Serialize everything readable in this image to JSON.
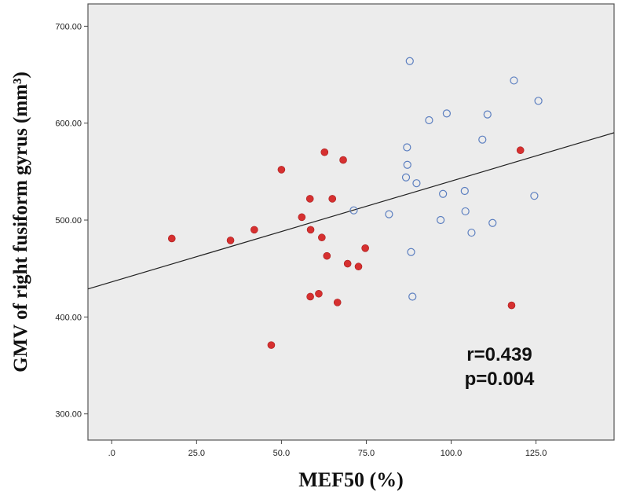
{
  "chart_data": {
    "type": "scatter",
    "xlabel": "MEF50 (%)",
    "ylabel": "GMV of right fusiform gyrus (mm³)",
    "xlim": [
      -7,
      148
    ],
    "ylim": [
      273,
      723
    ],
    "x_ticks": [
      {
        "value": 0,
        "label": ".0"
      },
      {
        "value": 25,
        "label": "25.0"
      },
      {
        "value": 50,
        "label": "50.0"
      },
      {
        "value": 75,
        "label": "75.0"
      },
      {
        "value": 100,
        "label": "100.0"
      },
      {
        "value": 125,
        "label": "125.0"
      }
    ],
    "y_ticks": [
      {
        "value": 300,
        "label": "300.00"
      },
      {
        "value": 400,
        "label": "400.00"
      },
      {
        "value": 500,
        "label": "500.00"
      },
      {
        "value": 600,
        "label": "600.00"
      },
      {
        "value": 700,
        "label": "700.00"
      }
    ],
    "grid": false,
    "plot_background": "#ececec",
    "series": [
      {
        "marker": "filled",
        "color": "#d63030",
        "points": [
          [
            17.7,
            481
          ],
          [
            35.0,
            479
          ],
          [
            42.0,
            490
          ],
          [
            47.0,
            371
          ],
          [
            50.0,
            552
          ],
          [
            56.0,
            503
          ],
          [
            58.4,
            522
          ],
          [
            58.6,
            490
          ],
          [
            58.5,
            421
          ],
          [
            61.0,
            424
          ],
          [
            61.9,
            482
          ],
          [
            62.7,
            570
          ],
          [
            63.4,
            463
          ],
          [
            65.0,
            522
          ],
          [
            66.5,
            415
          ],
          [
            68.2,
            562
          ],
          [
            69.5,
            455
          ],
          [
            72.7,
            452
          ],
          [
            74.7,
            471
          ],
          [
            117.8,
            412
          ],
          [
            120.4,
            572
          ]
        ]
      },
      {
        "marker": "hollow",
        "color": "#5c7fc0",
        "points": [
          [
            71.3,
            510
          ],
          [
            81.7,
            506
          ],
          [
            86.7,
            544
          ],
          [
            87.0,
            575
          ],
          [
            87.1,
            557
          ],
          [
            87.8,
            664
          ],
          [
            88.2,
            467
          ],
          [
            88.6,
            421
          ],
          [
            89.8,
            538
          ],
          [
            93.5,
            603
          ],
          [
            96.9,
            500
          ],
          [
            97.6,
            527
          ],
          [
            98.7,
            610
          ],
          [
            104.0,
            530
          ],
          [
            104.2,
            509
          ],
          [
            106.0,
            487
          ],
          [
            109.2,
            583
          ],
          [
            110.7,
            609
          ],
          [
            112.2,
            497
          ],
          [
            118.5,
            644
          ],
          [
            124.5,
            525
          ],
          [
            125.7,
            623
          ]
        ]
      }
    ],
    "fit_line": {
      "intercept": 436.2,
      "slope": 1.04,
      "color": "#222222"
    },
    "annotations": [
      "r=0.439",
      "p=0.004"
    ]
  }
}
